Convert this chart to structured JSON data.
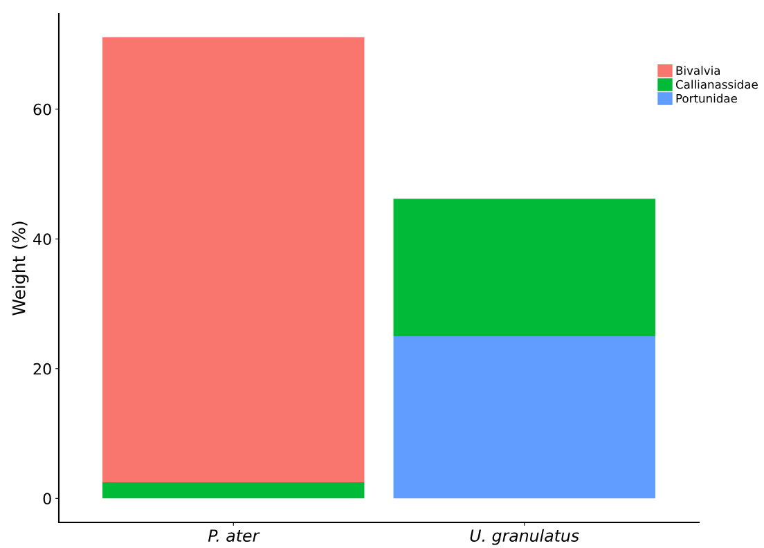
{
  "chart_data": {
    "type": "bar",
    "stacked": true,
    "ylabel": "Weight (%)",
    "categories": [
      "P. ater",
      "U. granulatus"
    ],
    "series": [
      {
        "name": "Portunidae",
        "color": "#619cff",
        "values": [
          0,
          25.0
        ]
      },
      {
        "name": "Callianassidae",
        "color": "#00ba38",
        "values": [
          2.5,
          21.2
        ]
      },
      {
        "name": "Bivalvia",
        "color": "#f8766d",
        "values": [
          68.6,
          0
        ]
      }
    ],
    "ylim": [
      -3.7,
      74.7
    ],
    "yticks": [
      0,
      20,
      40,
      60
    ],
    "grid": false,
    "legend": "top right"
  }
}
